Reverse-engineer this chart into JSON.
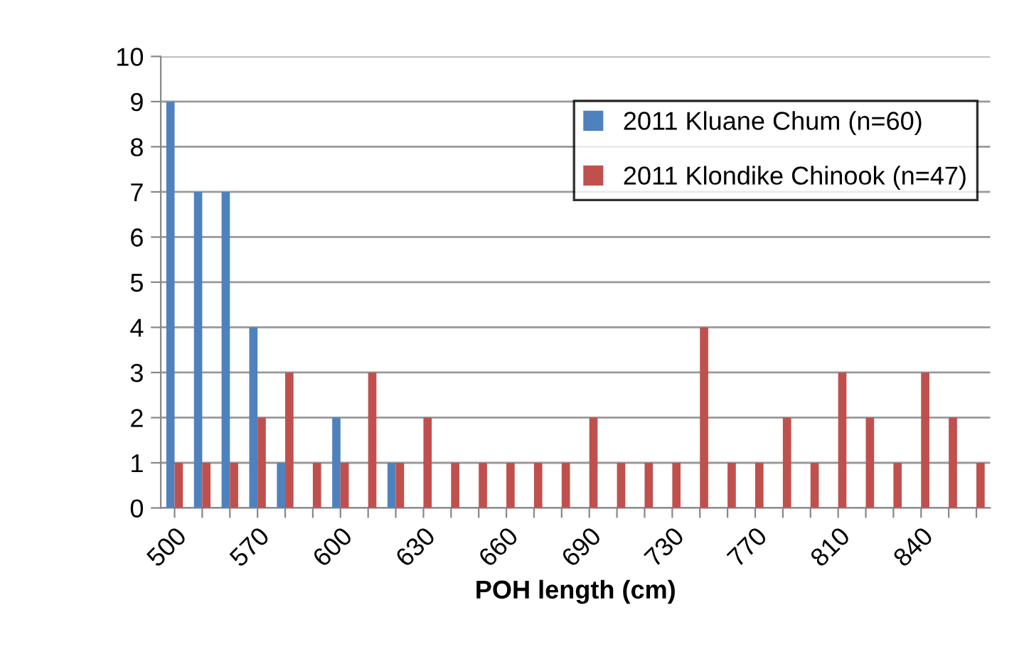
{
  "chart_data": {
    "type": "bar",
    "xlabel": "POH length (cm)",
    "categories": [
      "500",
      null,
      null,
      "570",
      null,
      null,
      "600",
      null,
      null,
      "630",
      null,
      null,
      "660",
      null,
      null,
      "690",
      null,
      null,
      "730",
      null,
      null,
      "770",
      null,
      null,
      "810",
      null,
      null,
      "840",
      null,
      null
    ],
    "series": [
      {
        "name": "2011 Kluane Chum (n=60)",
        "color": "#4f81bd",
        "values": [
          9,
          7,
          7,
          4,
          1,
          0,
          2,
          0,
          1,
          0,
          0,
          0,
          0,
          0,
          0,
          0,
          0,
          0,
          0,
          0,
          0,
          0,
          0,
          0,
          0,
          0,
          0,
          0,
          0,
          0
        ]
      },
      {
        "name": "2011 Klondike Chinook (n=47)",
        "color": "#c0504d",
        "values": [
          1,
          1,
          1,
          2,
          3,
          1,
          1,
          3,
          1,
          2,
          1,
          1,
          1,
          1,
          1,
          2,
          1,
          1,
          1,
          4,
          1,
          1,
          2,
          1,
          3,
          2,
          1,
          3,
          2,
          1
        ]
      }
    ],
    "ylim": [
      0,
      10
    ],
    "yticks": [
      0,
      1,
      2,
      3,
      4,
      5,
      6,
      7,
      8,
      9,
      10
    ],
    "grid": "y",
    "legend": "top right"
  }
}
